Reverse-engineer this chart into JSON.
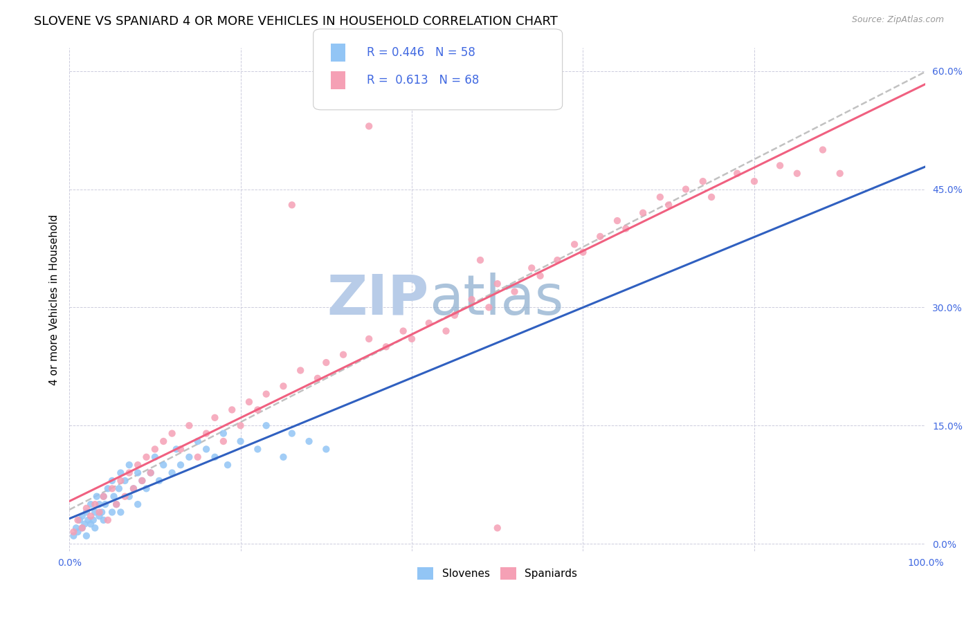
{
  "title": "SLOVENE VS SPANIARD 4 OR MORE VEHICLES IN HOUSEHOLD CORRELATION CHART",
  "source": "Source: ZipAtlas.com",
  "ylabel": "4 or more Vehicles in Household",
  "xlim": [
    0,
    100
  ],
  "ylim": [
    -1,
    63
  ],
  "yticks": [
    0,
    15,
    30,
    45,
    60
  ],
  "ytick_labels": [
    "0.0%",
    "15.0%",
    "30.0%",
    "45.0%",
    "60.0%"
  ],
  "xticks": [
    0,
    20,
    40,
    60,
    80,
    100
  ],
  "xtick_labels": [
    "0.0%",
    "",
    "",
    "",
    "",
    "100.0%"
  ],
  "slovene_R": 0.446,
  "slovene_N": 58,
  "spaniard_R": 0.613,
  "spaniard_N": 68,
  "slovene_color": "#92C5F5",
  "spaniard_color": "#F5A0B5",
  "slovene_line_color": "#3060C0",
  "spaniard_line_color": "#F06080",
  "trend_line_color": "#BBBBBB",
  "background_color": "#FFFFFF",
  "watermark_color": "#C8D8F0",
  "title_fontsize": 13,
  "label_fontsize": 11,
  "tick_fontsize": 10,
  "slovene_x": [
    0.5,
    0.8,
    1.0,
    1.2,
    1.5,
    1.5,
    1.8,
    2.0,
    2.0,
    2.2,
    2.5,
    2.5,
    2.8,
    3.0,
    3.0,
    3.2,
    3.5,
    3.5,
    3.8,
    4.0,
    4.0,
    4.2,
    4.5,
    5.0,
    5.0,
    5.2,
    5.5,
    5.8,
    6.0,
    6.0,
    6.5,
    7.0,
    7.0,
    7.5,
    8.0,
    8.0,
    8.5,
    9.0,
    9.5,
    10.0,
    10.5,
    11.0,
    12.0,
    12.5,
    13.0,
    14.0,
    15.0,
    16.0,
    17.0,
    18.0,
    18.5,
    20.0,
    22.0,
    23.0,
    25.0,
    26.0,
    28.0,
    30.0
  ],
  "slovene_y": [
    1.0,
    2.0,
    1.5,
    3.0,
    2.0,
    3.5,
    2.5,
    4.0,
    1.0,
    3.0,
    2.5,
    5.0,
    3.0,
    4.0,
    2.0,
    6.0,
    3.5,
    5.0,
    4.0,
    3.0,
    6.0,
    5.0,
    7.0,
    4.0,
    8.0,
    6.0,
    5.0,
    7.0,
    4.0,
    9.0,
    8.0,
    6.0,
    10.0,
    7.0,
    5.0,
    9.0,
    8.0,
    7.0,
    9.0,
    11.0,
    8.0,
    10.0,
    9.0,
    12.0,
    10.0,
    11.0,
    13.0,
    12.0,
    11.0,
    14.0,
    10.0,
    13.0,
    12.0,
    15.0,
    11.0,
    14.0,
    13.0,
    12.0
  ],
  "spaniard_x": [
    0.5,
    1.0,
    1.5,
    2.0,
    2.5,
    3.0,
    3.5,
    4.0,
    4.5,
    5.0,
    5.5,
    6.0,
    6.5,
    7.0,
    7.5,
    8.0,
    8.5,
    9.0,
    9.5,
    10.0,
    11.0,
    12.0,
    13.0,
    14.0,
    15.0,
    16.0,
    17.0,
    18.0,
    19.0,
    20.0,
    21.0,
    22.0,
    23.0,
    25.0,
    27.0,
    29.0,
    30.0,
    32.0,
    35.0,
    37.0,
    39.0,
    40.0,
    42.0,
    44.0,
    45.0,
    47.0,
    49.0,
    50.0,
    52.0,
    54.0,
    55.0,
    57.0,
    59.0,
    60.0,
    62.0,
    64.0,
    65.0,
    67.0,
    69.0,
    70.0,
    72.0,
    74.0,
    75.0,
    78.0,
    80.0,
    83.0,
    85.0,
    88.0
  ],
  "spaniard_y": [
    1.5,
    3.0,
    2.0,
    4.5,
    3.5,
    5.0,
    4.0,
    6.0,
    3.0,
    7.0,
    5.0,
    8.0,
    6.0,
    9.0,
    7.0,
    10.0,
    8.0,
    11.0,
    9.0,
    12.0,
    13.0,
    14.0,
    12.0,
    15.0,
    11.0,
    14.0,
    16.0,
    13.0,
    17.0,
    15.0,
    18.0,
    17.0,
    19.0,
    20.0,
    22.0,
    21.0,
    23.0,
    24.0,
    26.0,
    25.0,
    27.0,
    26.0,
    28.0,
    27.0,
    29.0,
    31.0,
    30.0,
    33.0,
    32.0,
    35.0,
    34.0,
    36.0,
    38.0,
    37.0,
    39.0,
    41.0,
    40.0,
    42.0,
    44.0,
    43.0,
    45.0,
    46.0,
    44.0,
    47.0,
    46.0,
    48.0,
    47.0,
    50.0
  ],
  "spaniard_outliers_x": [
    35.0,
    26.0,
    48.0,
    90.0,
    50.0
  ],
  "spaniard_outliers_y": [
    53.0,
    43.0,
    36.0,
    47.0,
    2.0
  ]
}
